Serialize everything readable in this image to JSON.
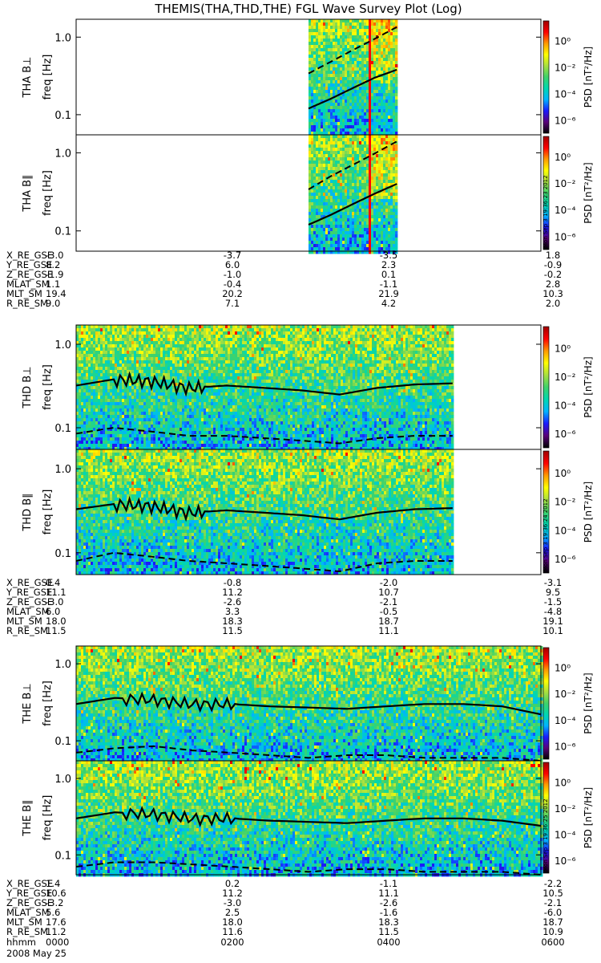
{
  "title": "THEMIS(THA,THD,THE) FGL Wave Survey Plot (Log)",
  "footer": {
    "hhmm_label": "hhmm",
    "date_label": "2008 May 25",
    "time_ticks": [
      "0000",
      "0200",
      "0400",
      "0600"
    ]
  },
  "colorbar": {
    "label": "PSD [nT²/Hz]",
    "tick_labels": [
      "10⁰",
      "10⁻²",
      "10⁻⁴",
      "10⁻⁶"
    ],
    "tick_exponents": [
      0,
      -2,
      -4,
      -6
    ],
    "range_exponents": [
      -7,
      1.5
    ],
    "colors": [
      "#000000",
      "#5a007a",
      "#1a1aff",
      "#00b4ff",
      "#00d8b0",
      "#3fd26a",
      "#a8e040",
      "#ffff00",
      "#ff9900",
      "#ff0000",
      "#a00000"
    ]
  },
  "stamp": {
    "tha": "Mon Sep  3 19:36:23 2012",
    "thd": "Mon Sep  3 19:36:24 2012",
    "the": "Mon Sep  3 19:36:25 2012"
  },
  "chart_data": [
    {
      "type": "heatmap",
      "probe": "THA",
      "component": "B⊥",
      "ylabel": "THA B⊥",
      "yunit": "freq [Hz]",
      "yticks": [
        1.0,
        0.1
      ],
      "ytick_labels": [
        "1.0",
        "0.1"
      ],
      "data_start_frac": 0.5,
      "data_end_frac": 0.69,
      "spike_frac": 0.63,
      "solid_line": [
        0.12,
        0.16,
        0.22,
        0.3,
        0.38
      ],
      "dashed_line": [
        0.34,
        0.48,
        0.68,
        0.95,
        1.35
      ]
    },
    {
      "type": "heatmap",
      "probe": "THA",
      "component": "B∥",
      "ylabel": "THA B∥",
      "yunit": "freq [Hz]",
      "yticks": [
        1.0,
        0.1
      ],
      "ytick_labels": [
        "1.0",
        "0.1"
      ],
      "data_start_frac": 0.5,
      "data_end_frac": 0.69,
      "spike_frac": 0.63,
      "solid_line": [
        0.12,
        0.16,
        0.22,
        0.3,
        0.4
      ],
      "dashed_line": [
        0.34,
        0.5,
        0.7,
        0.98,
        1.4
      ]
    },
    {
      "type": "heatmap",
      "probe": "THD",
      "component": "B⊥",
      "ylabel": "THD B⊥",
      "yunit": "freq [Hz]",
      "yticks": [
        1.0,
        0.1
      ],
      "ytick_labels": [
        "1.0",
        "0.1"
      ],
      "data_start_frac": 0.0,
      "data_end_frac": 0.81,
      "solid_line": [
        0.32,
        0.38,
        0.36,
        0.3,
        0.32,
        0.3,
        0.28,
        0.25,
        0.3,
        0.33,
        0.34
      ],
      "dashed_line": [
        0.085,
        0.1,
        0.09,
        0.08,
        0.08,
        0.075,
        0.07,
        0.065,
        0.075,
        0.08,
        0.08
      ]
    },
    {
      "type": "heatmap",
      "probe": "THD",
      "component": "B∥",
      "ylabel": "THD B∥",
      "yunit": "freq [Hz]",
      "yticks": [
        1.0,
        0.1
      ],
      "ytick_labels": [
        "1.0",
        "0.1"
      ],
      "data_start_frac": 0.0,
      "data_end_frac": 0.81,
      "solid_line": [
        0.33,
        0.38,
        0.36,
        0.3,
        0.32,
        0.3,
        0.28,
        0.25,
        0.3,
        0.33,
        0.34
      ],
      "dashed_line": [
        0.08,
        0.1,
        0.09,
        0.08,
        0.075,
        0.07,
        0.065,
        0.06,
        0.075,
        0.08,
        0.08
      ]
    },
    {
      "type": "heatmap",
      "probe": "THE",
      "component": "B⊥",
      "ylabel": "THE B⊥",
      "yunit": "freq [Hz]",
      "yticks": [
        1.0,
        0.1
      ],
      "ytick_labels": [
        "1.0",
        "0.1"
      ],
      "data_start_frac": 0.0,
      "data_end_frac": 1.0,
      "solid_line": [
        0.3,
        0.36,
        0.34,
        0.3,
        0.3,
        0.28,
        0.27,
        0.26,
        0.28,
        0.3,
        0.3,
        0.28,
        0.22
      ],
      "dashed_line": [
        0.07,
        0.08,
        0.085,
        0.075,
        0.07,
        0.065,
        0.06,
        0.065,
        0.065,
        0.06,
        0.06,
        0.06,
        0.055
      ]
    },
    {
      "type": "heatmap",
      "probe": "THE",
      "component": "B∥",
      "ylabel": "THE B∥",
      "yunit": "freq [Hz]",
      "yticks": [
        1.0,
        0.1
      ],
      "ytick_labels": [
        "1.0",
        "0.1"
      ],
      "data_start_frac": 0.0,
      "data_end_frac": 1.0,
      "solid_line": [
        0.3,
        0.36,
        0.34,
        0.3,
        0.3,
        0.28,
        0.27,
        0.26,
        0.28,
        0.3,
        0.3,
        0.28,
        0.24
      ],
      "dashed_line": [
        0.07,
        0.08,
        0.08,
        0.075,
        0.07,
        0.065,
        0.06,
        0.065,
        0.065,
        0.06,
        0.06,
        0.06,
        0.055
      ]
    }
  ],
  "ephemeris": [
    {
      "probe": "THA",
      "rows": [
        {
          "label": "X_RE_GSE",
          "values": [
            "-3.0",
            "-3.7",
            "-3.5",
            "1.8"
          ]
        },
        {
          "label": "Y_RE_GSE",
          "values": [
            "8.2",
            "6.0",
            "2.3",
            "-0.9"
          ]
        },
        {
          "label": "Z_RE_GSE",
          "values": [
            "-1.9",
            "-1.0",
            "0.1",
            "-0.2"
          ]
        },
        {
          "label": "MLAT_SM",
          "values": [
            "1.1",
            "-0.4",
            "-1.1",
            "2.8"
          ]
        },
        {
          "label": "MLT_SM",
          "values": [
            "19.4",
            "20.2",
            "21.9",
            "10.3"
          ]
        },
        {
          "label": "R_RE_SM",
          "values": [
            "9.0",
            "7.1",
            "4.2",
            "2.0"
          ]
        }
      ]
    },
    {
      "probe": "THD",
      "rows": [
        {
          "label": "X_RE_GSE",
          "values": [
            "0.4",
            "-0.8",
            "-2.0",
            "-3.1"
          ]
        },
        {
          "label": "Y_RE_GSE",
          "values": [
            "11.1",
            "11.2",
            "10.7",
            "9.5"
          ]
        },
        {
          "label": "Z_RE_GSE",
          "values": [
            "-3.0",
            "-2.6",
            "-2.1",
            "-1.5"
          ]
        },
        {
          "label": "MLAT_SM",
          "values": [
            "6.0",
            "3.3",
            "-0.5",
            "-4.8"
          ]
        },
        {
          "label": "MLT_SM",
          "values": [
            "18.0",
            "18.3",
            "18.7",
            "19.1"
          ]
        },
        {
          "label": "R_RE_SM",
          "values": [
            "11.5",
            "11.5",
            "11.1",
            "10.1"
          ]
        }
      ]
    },
    {
      "probe": "THE",
      "rows": [
        {
          "label": "X_RE_GSE",
          "values": [
            "1.4",
            "0.2",
            "-1.1",
            "-2.2"
          ]
        },
        {
          "label": "Y_RE_GSE",
          "values": [
            "10.6",
            "11.2",
            "11.1",
            "10.5"
          ]
        },
        {
          "label": "Z_RE_GSE",
          "values": [
            "-3.2",
            "-3.0",
            "-2.6",
            "-2.1"
          ]
        },
        {
          "label": "MLAT_SM",
          "values": [
            "5.6",
            "2.5",
            "-1.6",
            "-6.0"
          ]
        },
        {
          "label": "MLT_SM",
          "values": [
            "17.6",
            "18.0",
            "18.3",
            "18.7"
          ]
        },
        {
          "label": "R_RE_SM",
          "values": [
            "11.2",
            "11.6",
            "11.5",
            "10.9"
          ]
        }
      ]
    }
  ]
}
